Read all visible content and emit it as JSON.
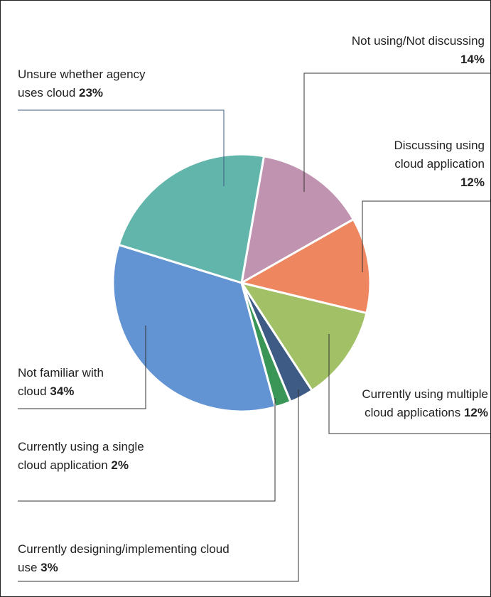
{
  "chart_data": {
    "type": "pie",
    "categories": [
      "Not using/Not discussing",
      "Discussing using cloud application",
      "Currently using multiple cloud applications",
      "Currently designing/implementing cloud use",
      "Currently using a single cloud application",
      "Not familiar with cloud",
      "Unsure whether agency uses cloud"
    ],
    "values": [
      14,
      12,
      12,
      3,
      2,
      34,
      23
    ],
    "value_labels": [
      "14%",
      "12%",
      "12%",
      "3%",
      "2%",
      "34%",
      "23%"
    ],
    "colors": [
      "#c094b0",
      "#ee8660",
      "#a2c065",
      "#3e5b85",
      "#3a9657",
      "#6293d3",
      "#62b5ab"
    ]
  }
}
